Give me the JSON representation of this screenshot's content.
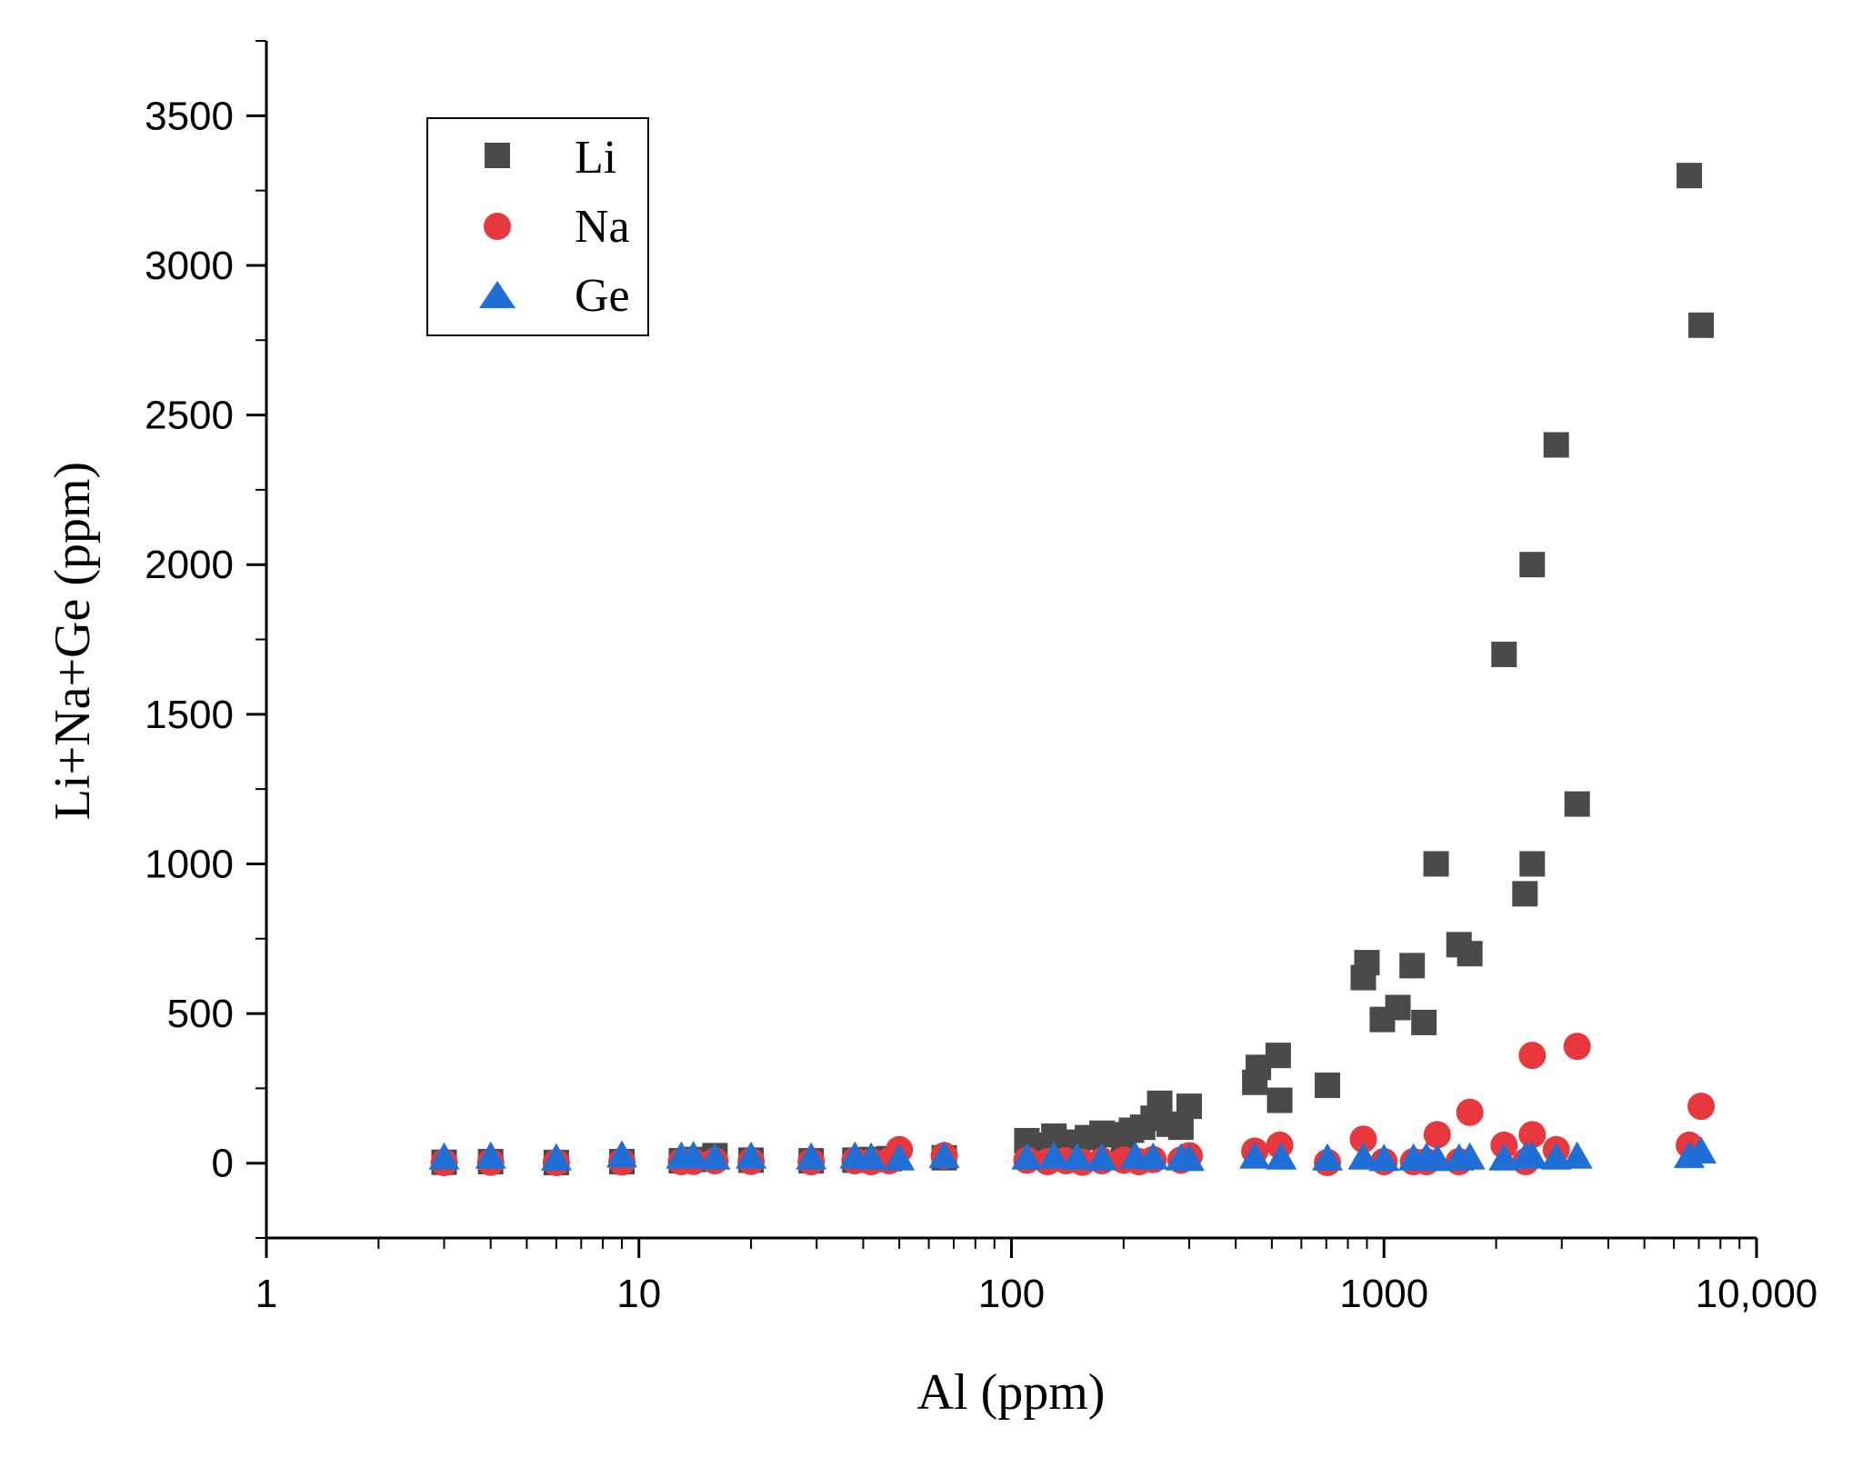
{
  "chart_data": {
    "type": "scatter",
    "title": "",
    "xlabel": "Al (ppm)",
    "ylabel": "Li+Na+Ge (ppm)",
    "xscale": "log",
    "xlim": [
      1,
      10000
    ],
    "ylim": [
      -250,
      3750
    ],
    "x_ticks": [
      1,
      10,
      100,
      1000,
      10000
    ],
    "x_tick_labels": [
      "1",
      "10",
      "100",
      "1000",
      "10,000"
    ],
    "y_ticks": [
      0,
      500,
      1000,
      1500,
      2000,
      2500,
      3000,
      3500
    ],
    "y_tick_labels": [
      "0",
      "500",
      "1000",
      "1500",
      "2000",
      "2500",
      "3000",
      "3500"
    ],
    "grid": false,
    "legend_position": "top-left",
    "series": [
      {
        "name": "Li",
        "marker": "square",
        "color": "#4a4a4a",
        "points": [
          [
            3,
            3
          ],
          [
            4,
            5
          ],
          [
            6,
            2
          ],
          [
            9,
            5
          ],
          [
            13,
            8
          ],
          [
            14,
            12
          ],
          [
            16,
            25
          ],
          [
            20,
            10
          ],
          [
            29,
            8
          ],
          [
            38,
            10
          ],
          [
            42,
            12
          ],
          [
            47,
            15
          ],
          [
            66,
            18
          ],
          [
            110,
            75
          ],
          [
            120,
            60
          ],
          [
            130,
            90
          ],
          [
            140,
            70
          ],
          [
            150,
            55
          ],
          [
            160,
            85
          ],
          [
            175,
            100
          ],
          [
            185,
            95
          ],
          [
            200,
            80
          ],
          [
            210,
            110
          ],
          [
            225,
            120
          ],
          [
            240,
            150
          ],
          [
            250,
            200
          ],
          [
            265,
            130
          ],
          [
            285,
            120
          ],
          [
            300,
            190
          ],
          [
            450,
            270
          ],
          [
            460,
            320
          ],
          [
            520,
            360
          ],
          [
            525,
            210
          ],
          [
            705,
            260
          ],
          [
            880,
            620
          ],
          [
            900,
            670
          ],
          [
            990,
            480
          ],
          [
            1090,
            520
          ],
          [
            1190,
            660
          ],
          [
            1280,
            470
          ],
          [
            1380,
            1000
          ],
          [
            1590,
            730
          ],
          [
            1700,
            700
          ],
          [
            2100,
            1700
          ],
          [
            2390,
            900
          ],
          [
            2500,
            2000
          ],
          [
            2500,
            1000
          ],
          [
            2900,
            2400
          ],
          [
            3300,
            1200
          ],
          [
            6600,
            3300
          ],
          [
            7100,
            2800
          ]
        ]
      },
      {
        "name": "Na",
        "marker": "circle",
        "color": "#e8383d",
        "points": [
          [
            3,
            2
          ],
          [
            4,
            3
          ],
          [
            6,
            2
          ],
          [
            9,
            4
          ],
          [
            13,
            5
          ],
          [
            14,
            6
          ],
          [
            16,
            8
          ],
          [
            20,
            6
          ],
          [
            29,
            5
          ],
          [
            38,
            8
          ],
          [
            42,
            5
          ],
          [
            47,
            8
          ],
          [
            50,
            45
          ],
          [
            66,
            25
          ],
          [
            110,
            10
          ],
          [
            125,
            5
          ],
          [
            140,
            8
          ],
          [
            155,
            3
          ],
          [
            175,
            8
          ],
          [
            200,
            10
          ],
          [
            220,
            5
          ],
          [
            240,
            12
          ],
          [
            285,
            10
          ],
          [
            300,
            25
          ],
          [
            450,
            40
          ],
          [
            525,
            60
          ],
          [
            705,
            2
          ],
          [
            880,
            80
          ],
          [
            1000,
            5
          ],
          [
            1200,
            5
          ],
          [
            1300,
            5
          ],
          [
            1390,
            95
          ],
          [
            1590,
            5
          ],
          [
            1700,
            170
          ],
          [
            2100,
            60
          ],
          [
            2400,
            5
          ],
          [
            2500,
            360
          ],
          [
            2500,
            95
          ],
          [
            2900,
            45
          ],
          [
            3300,
            390
          ],
          [
            6600,
            60
          ],
          [
            7100,
            190
          ]
        ]
      },
      {
        "name": "Ge",
        "marker": "triangle",
        "color": "#1f6fd6",
        "points": [
          [
            3,
            15
          ],
          [
            4,
            18
          ],
          [
            6,
            12
          ],
          [
            9,
            22
          ],
          [
            13,
            18
          ],
          [
            14,
            20
          ],
          [
            16,
            15
          ],
          [
            20,
            18
          ],
          [
            29,
            15
          ],
          [
            38,
            18
          ],
          [
            42,
            15
          ],
          [
            50,
            12
          ],
          [
            66,
            20
          ],
          [
            110,
            15
          ],
          [
            130,
            18
          ],
          [
            150,
            15
          ],
          [
            175,
            12
          ],
          [
            215,
            18
          ],
          [
            240,
            15
          ],
          [
            285,
            12
          ],
          [
            300,
            10
          ],
          [
            450,
            18
          ],
          [
            530,
            15
          ],
          [
            705,
            12
          ],
          [
            880,
            15
          ],
          [
            1000,
            10
          ],
          [
            1200,
            12
          ],
          [
            1300,
            15
          ],
          [
            1390,
            10
          ],
          [
            1590,
            12
          ],
          [
            1700,
            15
          ],
          [
            2100,
            12
          ],
          [
            2400,
            18
          ],
          [
            2500,
            20
          ],
          [
            2900,
            15
          ],
          [
            3300,
            18
          ],
          [
            6600,
            20
          ],
          [
            7100,
            35
          ]
        ]
      }
    ]
  }
}
